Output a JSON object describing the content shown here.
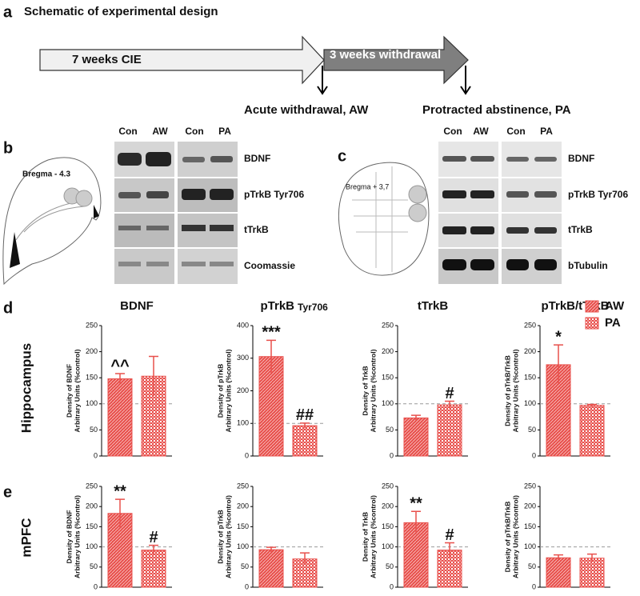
{
  "panel_labels": [
    "a",
    "b",
    "c",
    "d",
    "e"
  ],
  "schematic": {
    "title": "Schematic of experimental design",
    "phase_1": "7 weeks CIE",
    "phase_2": "3 weeks withdrawal",
    "event_1": "Acute withdrawal, AW",
    "event_2": "Protracted abstinence, PA"
  },
  "blot_b": {
    "atlas_label": "Bregma - 4.3",
    "lanes": [
      "Con",
      "AW",
      "Con",
      "PA"
    ],
    "rows": [
      "BDNF",
      "pTrkB Tyr706",
      "tTrkB",
      "Coomassie"
    ]
  },
  "blot_c": {
    "atlas_label": "Bregma + 3,7",
    "lanes": [
      "Con",
      "AW",
      "Con",
      "PA"
    ],
    "rows": [
      "BDNF",
      "pTrkB Tyr706",
      "tTrkB",
      "bTubulin"
    ]
  },
  "row_labels": [
    "Hippocampus",
    "mPFC"
  ],
  "chart_data": [
    {
      "type": "bar",
      "title": "BDNF",
      "y_label": [
        "Density of BDNF",
        "Arbitrary Units (%control)"
      ],
      "ylim": [
        0,
        250
      ],
      "yticks": [
        0,
        50,
        100,
        150,
        200,
        250
      ],
      "reference_line": 100,
      "series": [
        {
          "color": "#e8504c",
          "pattern": "hatch",
          "values": [
            148
          ],
          "errors": [
            10
          ],
          "annotations": [
            "^^"
          ]
        },
        {
          "color": "#e8504c",
          "pattern": "dots",
          "values": [
            153
          ],
          "errors": [
            38
          ]
        }
      ]
    },
    {
      "type": "bar",
      "title": "pTrkB",
      "subtitle": "Tyr706",
      "y_label": [
        "Density of pTrkB",
        "Arbitrary Units (%control)"
      ],
      "ylim": [
        0,
        400
      ],
      "yticks": [
        0,
        100,
        200,
        300,
        400
      ],
      "reference_line": 100,
      "series": [
        {
          "color": "#e8504c",
          "pattern": "hatch",
          "values": [
            305
          ],
          "errors": [
            50
          ],
          "annotations": [
            "***"
          ]
        },
        {
          "color": "#e8504c",
          "pattern": "dots",
          "values": [
            93
          ],
          "errors": [
            8
          ],
          "annotations": [
            "##"
          ]
        }
      ]
    },
    {
      "type": "bar",
      "title": "tTrkB",
      "y_label": [
        "Density of TrkB",
        "Arbitrary Units (%control)"
      ],
      "ylim": [
        0,
        250
      ],
      "yticks": [
        0,
        50,
        100,
        150,
        200,
        250
      ],
      "reference_line": 100,
      "series": [
        {
          "color": "#e8504c",
          "pattern": "hatch",
          "values": [
            73
          ],
          "errors": [
            5
          ]
        },
        {
          "color": "#e8504c",
          "pattern": "dots",
          "values": [
            98
          ],
          "errors": [
            7
          ],
          "annotations": [
            "#"
          ]
        }
      ]
    },
    {
      "type": "bar",
      "title": "pTrkB/tTrkB",
      "y_label": [
        "Density of pTrkB/TrkB",
        "Arbitrary Units (%control)"
      ],
      "ylim": [
        0,
        250
      ],
      "yticks": [
        0,
        50,
        100,
        150,
        200,
        250
      ],
      "reference_line": 100,
      "legend": true,
      "series": [
        {
          "name": "AW",
          "color": "#e8504c",
          "pattern": "hatch",
          "values": [
            175
          ],
          "errors": [
            38
          ],
          "annotations": [
            "*"
          ]
        },
        {
          "name": "PA",
          "color": "#e8504c",
          "pattern": "dots",
          "values": [
            97
          ],
          "errors": [
            2
          ]
        }
      ]
    },
    {
      "type": "bar",
      "y_label": [
        "Density of BDNF",
        "Arbitrary Units (%control)"
      ],
      "ylim": [
        0,
        250
      ],
      "yticks": [
        0,
        50,
        100,
        150,
        200,
        250
      ],
      "reference_line": 100,
      "series": [
        {
          "color": "#e8504c",
          "pattern": "hatch",
          "values": [
            183
          ],
          "errors": [
            35
          ],
          "annotations": [
            "**"
          ]
        },
        {
          "color": "#e8504c",
          "pattern": "dots",
          "values": [
            92
          ],
          "errors": [
            12
          ],
          "annotations": [
            "#"
          ]
        }
      ]
    },
    {
      "type": "bar",
      "y_label": [
        "Density of pTrkB",
        "Arbitrary Units (%control)"
      ],
      "ylim": [
        0,
        250
      ],
      "yticks": [
        0,
        50,
        100,
        150,
        200,
        250
      ],
      "reference_line": 100,
      "series": [
        {
          "color": "#e8504c",
          "pattern": "hatch",
          "values": [
            93
          ],
          "errors": [
            6
          ]
        },
        {
          "color": "#e8504c",
          "pattern": "dots",
          "values": [
            70
          ],
          "errors": [
            15
          ]
        }
      ]
    },
    {
      "type": "bar",
      "y_label": [
        "Density of TrkB",
        "Arbitrary Units (%control)"
      ],
      "ylim": [
        0,
        250
      ],
      "yticks": [
        0,
        50,
        100,
        150,
        200,
        250
      ],
      "reference_line": 100,
      "series": [
        {
          "color": "#e8504c",
          "pattern": "hatch",
          "values": [
            160
          ],
          "errors": [
            28
          ],
          "annotations": [
            "**"
          ]
        },
        {
          "color": "#e8504c",
          "pattern": "dots",
          "values": [
            92
          ],
          "errors": [
            18
          ],
          "annotations": [
            "#"
          ]
        }
      ]
    },
    {
      "type": "bar",
      "y_label": [
        "Density of pTrkB/TrkB",
        "Arbitrary Units (%control)"
      ],
      "ylim": [
        0,
        250
      ],
      "yticks": [
        0,
        50,
        100,
        150,
        200,
        250
      ],
      "reference_line": 100,
      "series": [
        {
          "color": "#e8504c",
          "pattern": "hatch",
          "values": [
            73
          ],
          "errors": [
            7
          ]
        },
        {
          "color": "#e8504c",
          "pattern": "dots",
          "values": [
            72
          ],
          "errors": [
            10
          ]
        }
      ]
    }
  ]
}
